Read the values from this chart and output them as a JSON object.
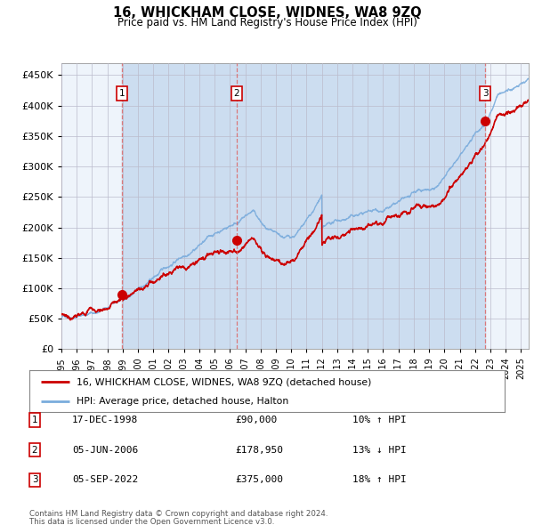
{
  "title": "16, WHICKHAM CLOSE, WIDNES, WA8 9ZQ",
  "subtitle": "Price paid vs. HM Land Registry's House Price Index (HPI)",
  "yticks": [
    0,
    50000,
    100000,
    150000,
    200000,
    250000,
    300000,
    350000,
    400000,
    450000
  ],
  "ytick_labels": [
    "£0",
    "£50K",
    "£100K",
    "£150K",
    "£200K",
    "£250K",
    "£300K",
    "£350K",
    "£400K",
    "£450K"
  ],
  "xlim_start": 1995.0,
  "xlim_end": 2025.5,
  "ylim_min": 0,
  "ylim_max": 470000,
  "sale_dates": [
    1998.96,
    2006.43,
    2022.67
  ],
  "sale_prices": [
    90000,
    178950,
    375000
  ],
  "sale_labels": [
    "1",
    "2",
    "3"
  ],
  "sale_info": [
    {
      "num": "1",
      "date": "17-DEC-1998",
      "price": "£90,000",
      "hpi": "10% ↑ HPI"
    },
    {
      "num": "2",
      "date": "05-JUN-2006",
      "price": "£178,950",
      "hpi": "13% ↓ HPI"
    },
    {
      "num": "3",
      "date": "05-SEP-2022",
      "price": "£375,000",
      "hpi": "18% ↑ HPI"
    }
  ],
  "legend_line1": "16, WHICKHAM CLOSE, WIDNES, WA8 9ZQ (detached house)",
  "legend_line2": "HPI: Average price, detached house, Halton",
  "footer1": "Contains HM Land Registry data © Crown copyright and database right 2024.",
  "footer2": "This data is licensed under the Open Government Licence v3.0.",
  "hpi_color": "#7aacdc",
  "sale_line_color": "#cc0000",
  "sale_marker_color": "#cc0000",
  "bg_color": "#ddeaf7",
  "chart_bg": "#eef4fb",
  "grid_color": "#bbbbcc",
  "vline_color": "#dd6666",
  "box_color": "#cc0000",
  "shade_color": "#ccddf0"
}
